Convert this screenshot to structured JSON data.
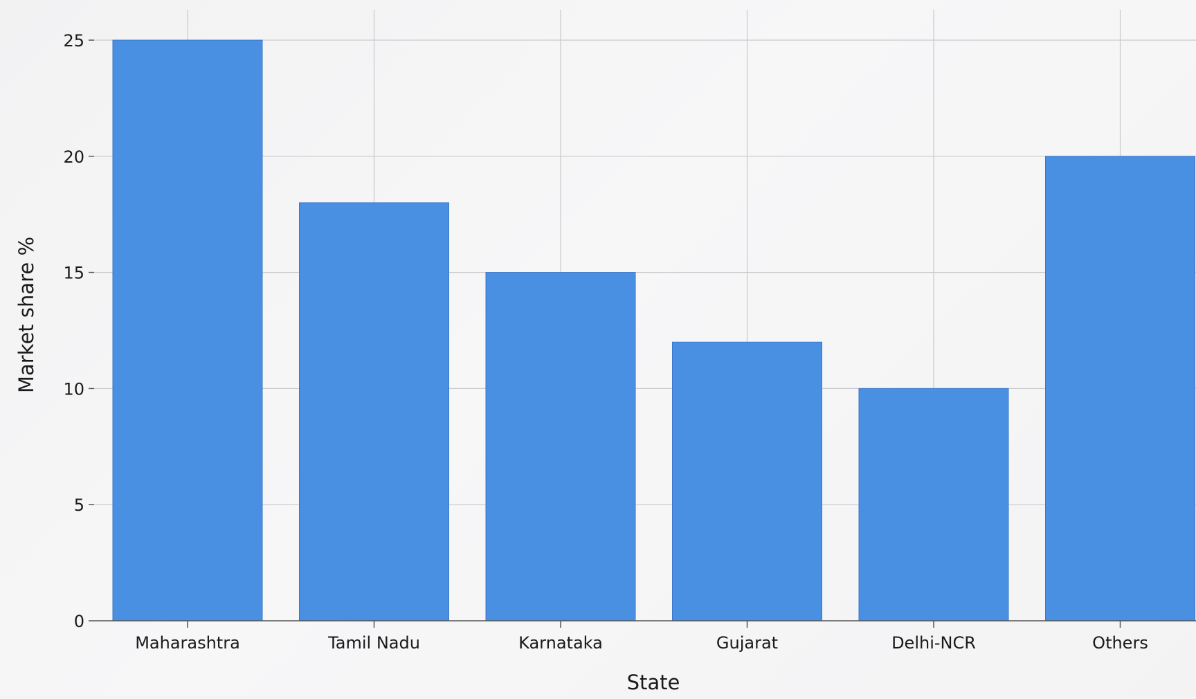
{
  "chart_data": {
    "type": "bar",
    "categories": [
      "Maharashtra",
      "Tamil Nadu",
      "Karnataka",
      "Gujarat",
      "Delhi-NCR",
      "Others"
    ],
    "series": [
      {
        "values": [
          25,
          18,
          15,
          12,
          10,
          20
        ]
      }
    ],
    "xlabel": "State",
    "ylabel": "Market share %",
    "ylim": [
      0,
      25
    ],
    "yticks": [
      0,
      5,
      10,
      15,
      20,
      25
    ],
    "grid": true,
    "legend": "none",
    "colors": {
      "bar": "#4a90e2"
    }
  }
}
